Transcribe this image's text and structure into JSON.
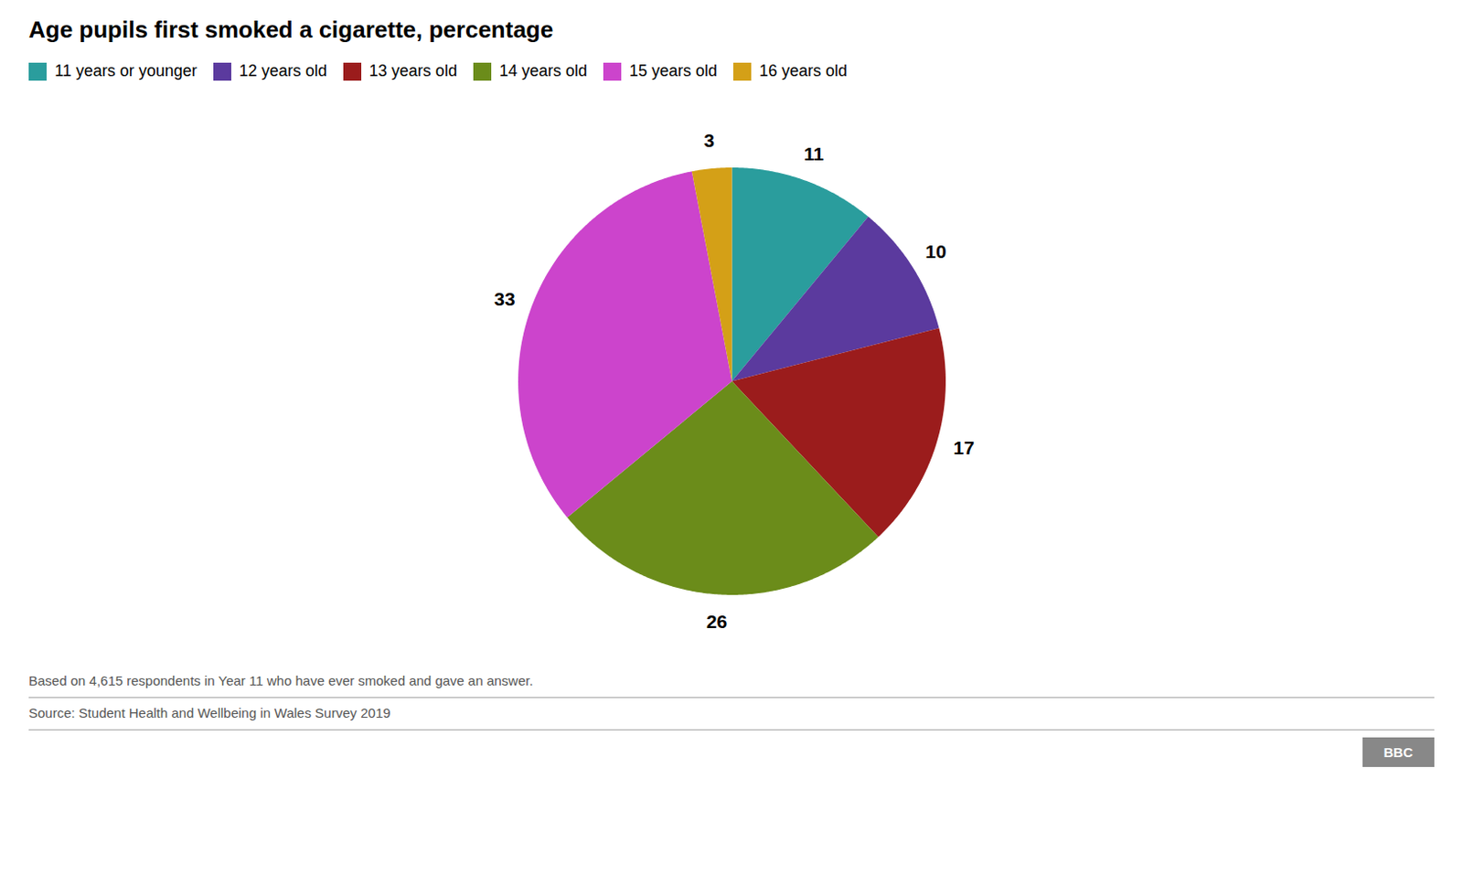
{
  "chart_data": {
    "type": "pie",
    "title": "Age pupils first smoked a cigarette, percentage",
    "categories": [
      "11 years or younger",
      "12 years old",
      "13 years old",
      "14 years old",
      "15 years old",
      "16 years old"
    ],
    "values": [
      11,
      10,
      17,
      26,
      33,
      3
    ],
    "colors": [
      "#2a9d9d",
      "#5b3a9e",
      "#9b1c1c",
      "#6b8c1a",
      "#cc44cc",
      "#d4a017"
    ],
    "data_labels": true,
    "legend": "top-left",
    "annotations": [
      "Based on 4,615 respondents in Year 11 who have ever smoked and gave an answer.",
      "Source: Student Health and Wellbeing in Wales Survey 2019",
      "BBC"
    ]
  }
}
